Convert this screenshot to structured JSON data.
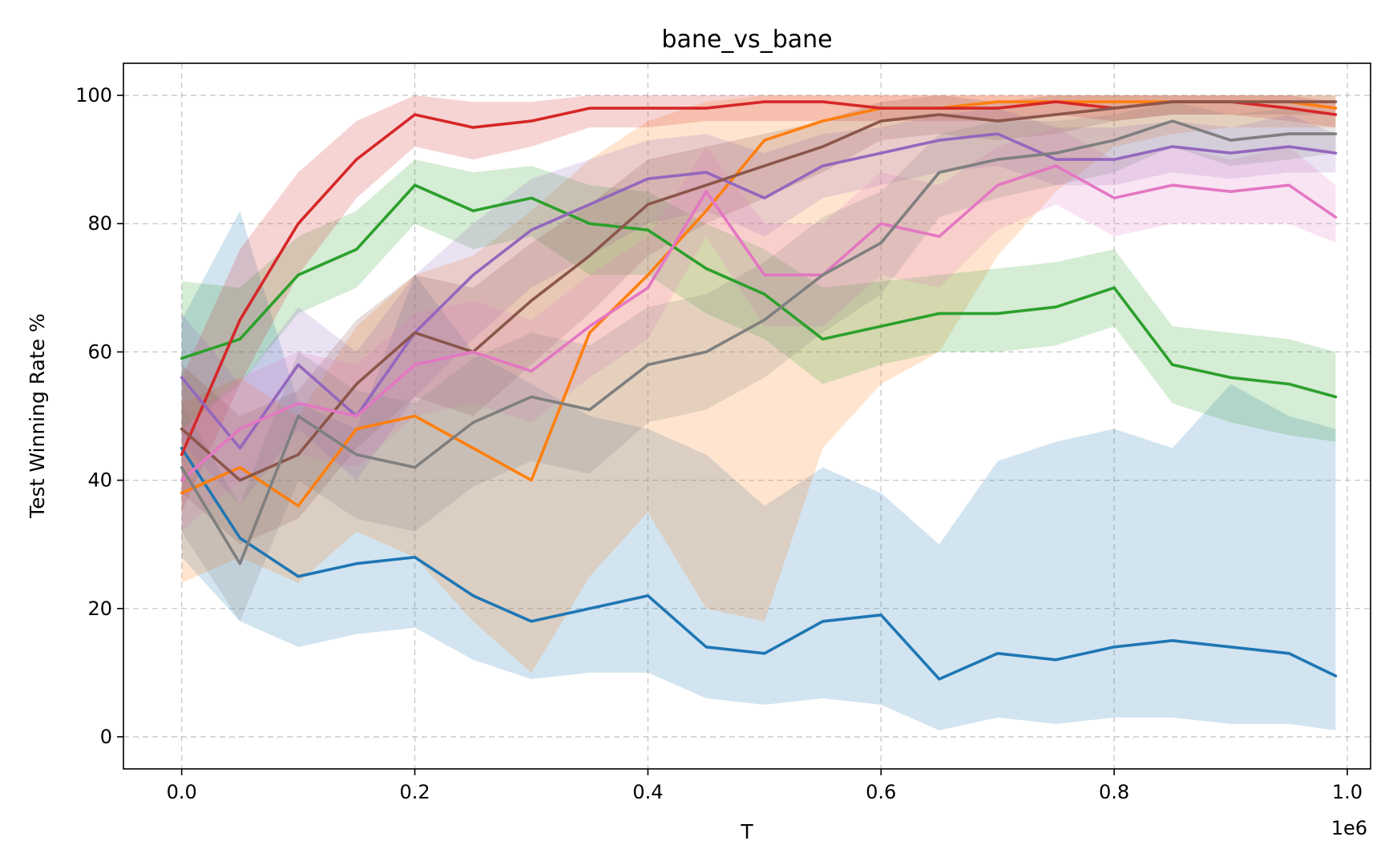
{
  "chart_data": {
    "type": "line",
    "title": "bane_vs_bane",
    "xlabel": "T",
    "ylabel": "Test Winning Rate %",
    "x_offset_label": "1e6",
    "xlim": [
      -0.05,
      1.02
    ],
    "ylim": [
      -5,
      105
    ],
    "xticks": [
      0.0,
      0.2,
      0.4,
      0.6,
      0.8,
      1.0
    ],
    "xtick_labels": [
      "0.0",
      "0.2",
      "0.4",
      "0.6",
      "0.8",
      "1.0"
    ],
    "yticks": [
      0,
      20,
      40,
      60,
      80,
      100
    ],
    "ytick_labels": [
      "0",
      "20",
      "40",
      "60",
      "80",
      "100"
    ],
    "grid": true,
    "band_opacity": 0.2,
    "series": [
      {
        "color": "#1f77b4",
        "x": [
          0.0,
          0.05,
          0.1,
          0.15,
          0.2,
          0.25,
          0.3,
          0.35,
          0.4,
          0.45,
          0.5,
          0.55,
          0.6,
          0.65,
          0.7,
          0.75,
          0.8,
          0.85,
          0.9,
          0.95,
          0.99
        ],
        "y": [
          45,
          31,
          25,
          27,
          28,
          22,
          18,
          20,
          22,
          14,
          13,
          18,
          19,
          9,
          13,
          12,
          14,
          15,
          14,
          13,
          9.5
        ],
        "lo": [
          28,
          18,
          14,
          16,
          17,
          12,
          9,
          10,
          10,
          6,
          5,
          6,
          5,
          1,
          3,
          2,
          3,
          3,
          2,
          2,
          1
        ],
        "hi": [
          65,
          82,
          52,
          48,
          72,
          60,
          55,
          50,
          48,
          44,
          36,
          42,
          38,
          30,
          43,
          46,
          48,
          45,
          55,
          50,
          48
        ]
      },
      {
        "color": "#ff7f0e",
        "x": [
          0.0,
          0.05,
          0.1,
          0.15,
          0.2,
          0.25,
          0.3,
          0.35,
          0.4,
          0.45,
          0.5,
          0.55,
          0.6,
          0.65,
          0.7,
          0.75,
          0.8,
          0.85,
          0.9,
          0.95,
          0.99
        ],
        "y": [
          38,
          42,
          36,
          48,
          50,
          45,
          40,
          63,
          72,
          82,
          93,
          96,
          98,
          98,
          99,
          99,
          99,
          99,
          99,
          99,
          98
        ],
        "lo": [
          24,
          28,
          24,
          32,
          28,
          18,
          10,
          25,
          35,
          20,
          18,
          45,
          55,
          60,
          75,
          85,
          92,
          94,
          95,
          95,
          95
        ],
        "hi": [
          52,
          56,
          50,
          64,
          72,
          75,
          82,
          90,
          96,
          99,
          100,
          100,
          100,
          100,
          100,
          100,
          100,
          100,
          100,
          100,
          100
        ]
      },
      {
        "color": "#2ca02c",
        "x": [
          0.0,
          0.05,
          0.1,
          0.15,
          0.2,
          0.25,
          0.3,
          0.35,
          0.4,
          0.45,
          0.5,
          0.55,
          0.6,
          0.65,
          0.7,
          0.75,
          0.8,
          0.85,
          0.9,
          0.95,
          0.99
        ],
        "y": [
          59,
          62,
          72,
          76,
          86,
          82,
          84,
          80,
          79,
          73,
          69,
          62,
          64,
          66,
          66,
          67,
          70,
          58,
          56,
          55,
          53
        ],
        "lo": [
          48,
          55,
          66,
          70,
          80,
          76,
          78,
          72,
          72,
          66,
          62,
          55,
          58,
          60,
          60,
          61,
          64,
          52,
          49,
          47,
          46
        ],
        "hi": [
          71,
          70,
          78,
          82,
          90,
          88,
          89,
          86,
          85,
          80,
          76,
          70,
          71,
          72,
          73,
          74,
          76,
          64,
          63,
          62,
          60
        ]
      },
      {
        "color": "#d62728",
        "x": [
          0.0,
          0.05,
          0.1,
          0.15,
          0.2,
          0.25,
          0.3,
          0.35,
          0.4,
          0.45,
          0.5,
          0.55,
          0.6,
          0.65,
          0.7,
          0.75,
          0.8,
          0.85,
          0.9,
          0.95,
          0.99
        ],
        "y": [
          44,
          65,
          80,
          90,
          97,
          95,
          96,
          98,
          98,
          98,
          99,
          99,
          98,
          98,
          98,
          99,
          98,
          99,
          99,
          98,
          97
        ],
        "lo": [
          35,
          55,
          72,
          84,
          92,
          90,
          92,
          95,
          95,
          96,
          96,
          96,
          96,
          96,
          96,
          97,
          96,
          97,
          97,
          96,
          95
        ],
        "hi": [
          56,
          76,
          88,
          96,
          100,
          99,
          99,
          100,
          100,
          100,
          100,
          100,
          100,
          100,
          100,
          100,
          100,
          100,
          100,
          100,
          99
        ]
      },
      {
        "color": "#9467bd",
        "x": [
          0.0,
          0.05,
          0.1,
          0.15,
          0.2,
          0.25,
          0.3,
          0.35,
          0.4,
          0.45,
          0.5,
          0.55,
          0.6,
          0.65,
          0.7,
          0.75,
          0.8,
          0.85,
          0.9,
          0.95,
          0.99
        ],
        "y": [
          56,
          45,
          58,
          50,
          63,
          72,
          79,
          83,
          87,
          88,
          84,
          89,
          91,
          93,
          94,
          90,
          90,
          92,
          91,
          92,
          91
        ],
        "lo": [
          46,
          36,
          48,
          40,
          53,
          62,
          70,
          75,
          80,
          82,
          78,
          84,
          86,
          88,
          89,
          86,
          86,
          88,
          87,
          88,
          88
        ],
        "hi": [
          66,
          55,
          67,
          60,
          72,
          80,
          87,
          90,
          93,
          94,
          91,
          94,
          95,
          97,
          98,
          95,
          95,
          96,
          95,
          97,
          94
        ]
      },
      {
        "color": "#8c564b",
        "x": [
          0.0,
          0.05,
          0.1,
          0.15,
          0.2,
          0.25,
          0.3,
          0.35,
          0.4,
          0.45,
          0.5,
          0.55,
          0.6,
          0.65,
          0.7,
          0.75,
          0.8,
          0.85,
          0.9,
          0.95,
          0.99
        ],
        "y": [
          48,
          40,
          44,
          55,
          63,
          60,
          68,
          75,
          83,
          86,
          89,
          92,
          96,
          97,
          96,
          97,
          98,
          99,
          99,
          99,
          99
        ],
        "lo": [
          38,
          30,
          34,
          45,
          53,
          50,
          58,
          66,
          75,
          80,
          84,
          88,
          93,
          94,
          93,
          94,
          96,
          97,
          97,
          97,
          97
        ],
        "hi": [
          58,
          50,
          54,
          65,
          72,
          70,
          77,
          83,
          90,
          92,
          94,
          96,
          99,
          100,
          99,
          100,
          100,
          100,
          100,
          100,
          100
        ]
      },
      {
        "color": "#e377c2",
        "x": [
          0.0,
          0.05,
          0.1,
          0.15,
          0.2,
          0.25,
          0.3,
          0.35,
          0.4,
          0.45,
          0.5,
          0.55,
          0.6,
          0.65,
          0.7,
          0.75,
          0.8,
          0.85,
          0.9,
          0.95,
          0.99
        ],
        "y": [
          40,
          48,
          52,
          50,
          58,
          60,
          57,
          64,
          70,
          85,
          72,
          72,
          80,
          78,
          86,
          89,
          84,
          86,
          85,
          86,
          81
        ],
        "lo": [
          32,
          40,
          44,
          42,
          50,
          52,
          49,
          56,
          62,
          78,
          64,
          64,
          72,
          70,
          79,
          83,
          78,
          80,
          80,
          80,
          77
        ],
        "hi": [
          48,
          56,
          60,
          58,
          66,
          68,
          65,
          72,
          78,
          92,
          80,
          80,
          88,
          86,
          92,
          95,
          90,
          92,
          90,
          92,
          86
        ]
      },
      {
        "color": "#7f7f7f",
        "x": [
          0.0,
          0.05,
          0.1,
          0.15,
          0.2,
          0.25,
          0.3,
          0.35,
          0.4,
          0.45,
          0.5,
          0.55,
          0.6,
          0.65,
          0.7,
          0.75,
          0.8,
          0.85,
          0.9,
          0.95,
          0.99
        ],
        "y": [
          42,
          27,
          50,
          44,
          42,
          49,
          53,
          51,
          58,
          60,
          65,
          72,
          77,
          88,
          90,
          91,
          93,
          96,
          93,
          94,
          94
        ],
        "lo": [
          32,
          18,
          40,
          34,
          32,
          39,
          43,
          41,
          49,
          51,
          56,
          63,
          69,
          81,
          84,
          86,
          88,
          92,
          89,
          90,
          91
        ],
        "hi": [
          52,
          36,
          60,
          54,
          52,
          59,
          63,
          61,
          67,
          69,
          74,
          81,
          85,
          94,
          96,
          96,
          97,
          99,
          97,
          98,
          97
        ]
      }
    ]
  }
}
